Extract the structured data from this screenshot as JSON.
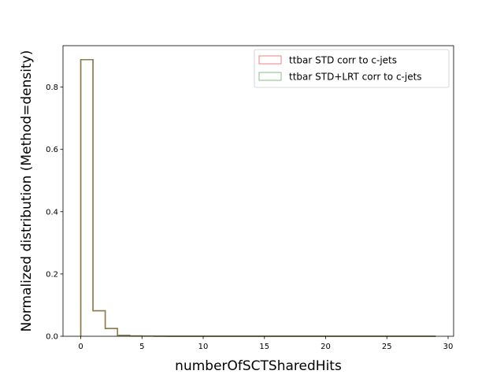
{
  "chart_data": {
    "type": "bar",
    "title": "",
    "xlabel": "numberOfSCTSharedHits",
    "ylabel": "Normalized distribution (Method=density)",
    "xlim": [
      -1.45,
      30.45
    ],
    "ylim": [
      0,
      0.933
    ],
    "xticks": [
      0,
      5,
      10,
      15,
      20,
      25,
      30
    ],
    "yticks": [
      0.0,
      0.2,
      0.4,
      0.6,
      0.8
    ],
    "ytick_labels": [
      "0.0",
      "0.2",
      "0.4",
      "0.6",
      "0.8"
    ],
    "grid": false,
    "legend_position": "top-right",
    "bin_edges": [
      0,
      1,
      2,
      3,
      4,
      5,
      6,
      7,
      8,
      9,
      10,
      11,
      12,
      13,
      14,
      15,
      16,
      17,
      18,
      19,
      20,
      21,
      22,
      23,
      24,
      25,
      26,
      27,
      28,
      29
    ],
    "series": [
      {
        "name": "ttbar STD corr to c-jets",
        "color": "#f08080",
        "values": [
          0.888,
          0.082,
          0.025,
          0.003,
          0.001,
          0.0005,
          0.0003,
          0.0001,
          0,
          0,
          0,
          0,
          0,
          0,
          0,
          0,
          0,
          0,
          0,
          0,
          0,
          0,
          0,
          0,
          0,
          0,
          0,
          0,
          0
        ]
      },
      {
        "name": "ttbar STD+LRT corr to c-jets",
        "color": "#80c080",
        "values": [
          0.888,
          0.082,
          0.025,
          0.003,
          0.001,
          0.0005,
          0.0003,
          0.0001,
          0,
          0,
          0,
          0,
          0,
          0,
          0,
          0,
          0,
          0,
          0,
          0,
          0,
          0,
          0,
          0,
          0,
          0,
          0,
          0,
          0
        ]
      }
    ],
    "overlap_color": "#8b7d4f"
  }
}
